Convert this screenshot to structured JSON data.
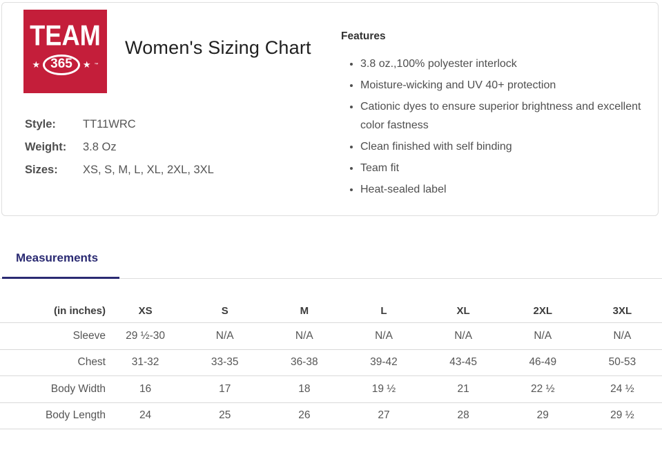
{
  "logo": {
    "word": "TEAM",
    "number": "365",
    "star": "★",
    "tm": "™",
    "bg_color": "#C41E3A"
  },
  "header": {
    "title": "Women's Sizing Chart"
  },
  "product": {
    "style_label": "Style:",
    "style_value": "TT11WRC",
    "weight_label": "Weight:",
    "weight_value": "3.8 Oz",
    "sizes_label": "Sizes:",
    "sizes_value": "XS, S, M, L, XL, 2XL, 3XL"
  },
  "features": {
    "heading": "Features",
    "items": [
      "3.8 oz.,100% polyester interlock",
      "Moisture-wicking and UV 40+ protection",
      "Cationic dyes to ensure superior brightness and excellent color fastness",
      "Clean finished with self binding",
      "Team fit",
      "Heat-sealed label"
    ]
  },
  "tabs": {
    "measurements_label": "Measurements",
    "active_color": "#2A2A72"
  },
  "table": {
    "unit_label": "(in inches)",
    "columns": [
      "XS",
      "S",
      "M",
      "L",
      "XL",
      "2XL",
      "3XL"
    ],
    "rows": [
      {
        "label": "Sleeve",
        "values": [
          "29 ½-30",
          "N/A",
          "N/A",
          "N/A",
          "N/A",
          "N/A",
          "N/A"
        ]
      },
      {
        "label": "Chest",
        "values": [
          "31-32",
          "33-35",
          "36-38",
          "39-42",
          "43-45",
          "46-49",
          "50-53"
        ]
      },
      {
        "label": "Body Width",
        "values": [
          "16",
          "17",
          "18",
          "19 ½",
          "21",
          "22 ½",
          "24 ½"
        ]
      },
      {
        "label": "Body Length",
        "values": [
          "24",
          "25",
          "26",
          "27",
          "28",
          "29",
          "29 ½"
        ]
      }
    ]
  }
}
